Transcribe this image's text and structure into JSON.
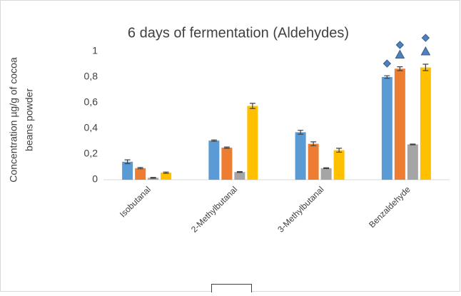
{
  "chart_data": {
    "type": "bar",
    "title": "6 days of fermentation (Aldehydes)",
    "y_label": [
      "Concentration µg/g of cocoa",
      "beans powder"
    ],
    "categories": [
      "Isobutanal",
      "2-Methylbutanal",
      "3-Methylbutanal",
      "Benzaldehyde"
    ],
    "series": [
      {
        "color": "#5b9bd5",
        "values": [
          0.14,
          0.305,
          0.37,
          0.8
        ],
        "errors": [
          0.015,
          0.005,
          0.015,
          0.01
        ],
        "symbols": [
          {
            "category": 3,
            "shape": "diamond",
            "value": 0.905
          }
        ]
      },
      {
        "color": "#ed7d31",
        "values": [
          0.09,
          0.25,
          0.28,
          0.865
        ],
        "errors": [
          0.005,
          0.005,
          0.015,
          0.015
        ],
        "symbols": [
          {
            "category": 3,
            "shape": "diamond",
            "value": 1.05
          },
          {
            "category": 3,
            "shape": "triangle",
            "value": 0.975
          }
        ]
      },
      {
        "color": "#a5a5a5",
        "values": [
          0.015,
          0.06,
          0.09,
          0.275
        ],
        "errors": [
          0.003,
          0.003,
          0.003,
          0.003
        ],
        "symbols": []
      },
      {
        "color": "#ffc000",
        "values": [
          0.055,
          0.575,
          0.23,
          0.875
        ],
        "errors": [
          0.005,
          0.02,
          0.015,
          0.025
        ],
        "symbols": [
          {
            "category": 3,
            "shape": "diamond",
            "value": 1.105
          },
          {
            "category": 3,
            "shape": "triangle",
            "value": 1.0
          }
        ]
      }
    ],
    "ylim": [
      0,
      1
    ],
    "yticks": [
      0,
      {
        "value": 0.2,
        "label": "0,2"
      },
      {
        "value": 0.4,
        "label": "0,4"
      },
      {
        "value": 0.6,
        "label": "0,6"
      },
      {
        "value": 0.8,
        "label": "0,8"
      },
      1
    ],
    "grid": false
  }
}
